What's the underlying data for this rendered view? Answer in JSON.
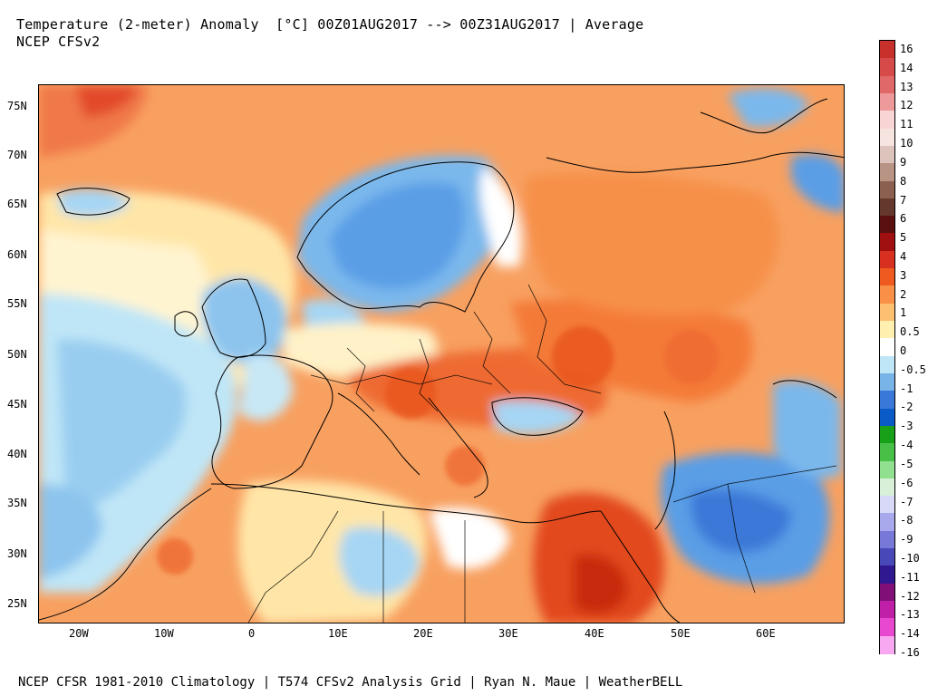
{
  "header": {
    "line1": "Temperature (2-meter) Anomaly  [°C] 00Z01AUG2017 --> 00Z31AUG2017 | Average",
    "line2": "NCEP CFSv2"
  },
  "footer": "NCEP CFSR 1981-2010 Climatology | T574 CFSv2 Analysis Grid | Ryan N. Maue | WeatherBELL",
  "map": {
    "region": "Europe / North Africa / Middle East",
    "lon_range": [
      -25,
      69
    ],
    "lat_range": [
      23,
      77
    ],
    "lon_ticks": [
      "20W",
      "10W",
      "0",
      "10E",
      "20E",
      "30E",
      "40E",
      "50E",
      "60E"
    ],
    "lat_ticks": [
      "75N",
      "70N",
      "65N",
      "60N",
      "55N",
      "50N",
      "45N",
      "40N",
      "35N",
      "30N",
      "25N"
    ]
  },
  "colorbar": {
    "labels": [
      "16",
      "14",
      "13",
      "12",
      "11",
      "10",
      "9",
      "8",
      "7",
      "6",
      "5",
      "4",
      "3",
      "2",
      "1",
      "0.5",
      "0",
      "-0.5",
      "-1",
      "-2",
      "-3",
      "-4",
      "-5",
      "-6",
      "-7",
      "-8",
      "-9",
      "-10",
      "-11",
      "-12",
      "-13",
      "-14",
      "-16"
    ],
    "colors": [
      "#c8302c",
      "#d64a4a",
      "#e06868",
      "#ee9a9a",
      "#f8d4d4",
      "#f6e4e0",
      "#dcc4bc",
      "#b89484",
      "#8c6050",
      "#64382c",
      "#5a1010",
      "#a01010",
      "#d83020",
      "#ee5a20",
      "#f89048",
      "#fcc070",
      "#fff0b0",
      "#ffffff",
      "#bfe6f7",
      "#79b4e8",
      "#3a78d8",
      "#0a5ac8",
      "#18a018",
      "#48c048",
      "#90e090",
      "#d8f0d8",
      "#d8d8f8",
      "#a8a8ec",
      "#7878d8",
      "#4848b8",
      "#301890",
      "#801078",
      "#c020a8",
      "#e848d0",
      "#f8a8f0"
    ]
  }
}
